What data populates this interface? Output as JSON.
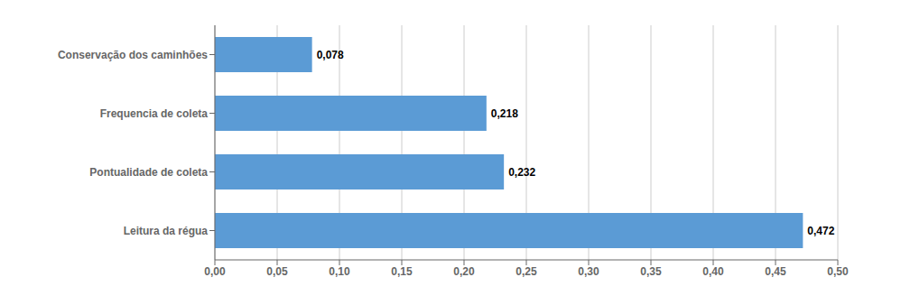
{
  "chart_data": {
    "type": "bar",
    "orientation": "horizontal",
    "categories": [
      "Leitura da régua",
      "Pontualidade de coleta",
      "Frequencia de coleta",
      "Conservação dos caminhões"
    ],
    "values": [
      0.472,
      0.232,
      0.218,
      0.078
    ],
    "value_labels": [
      "0,472",
      "0,232",
      "0,218",
      "0,078"
    ],
    "data_labels": true,
    "color": "#5B9BD5",
    "xlim": [
      0,
      0.5
    ],
    "xticks": [
      {
        "value": 0,
        "label": "0,00"
      },
      {
        "value": 0.05,
        "label": "0,05"
      },
      {
        "value": 0.1,
        "label": "0,10"
      },
      {
        "value": 0.15,
        "label": "0,15"
      },
      {
        "value": 0.2,
        "label": "0,20"
      },
      {
        "value": 0.25,
        "label": "0,25"
      },
      {
        "value": 0.3,
        "label": "0,30"
      },
      {
        "value": 0.35,
        "label": "0,35"
      },
      {
        "value": 0.4,
        "label": "0,40"
      },
      {
        "value": 0.45,
        "label": "0,45"
      },
      {
        "value": 0.5,
        "label": "0,50"
      }
    ],
    "grid": true
  }
}
